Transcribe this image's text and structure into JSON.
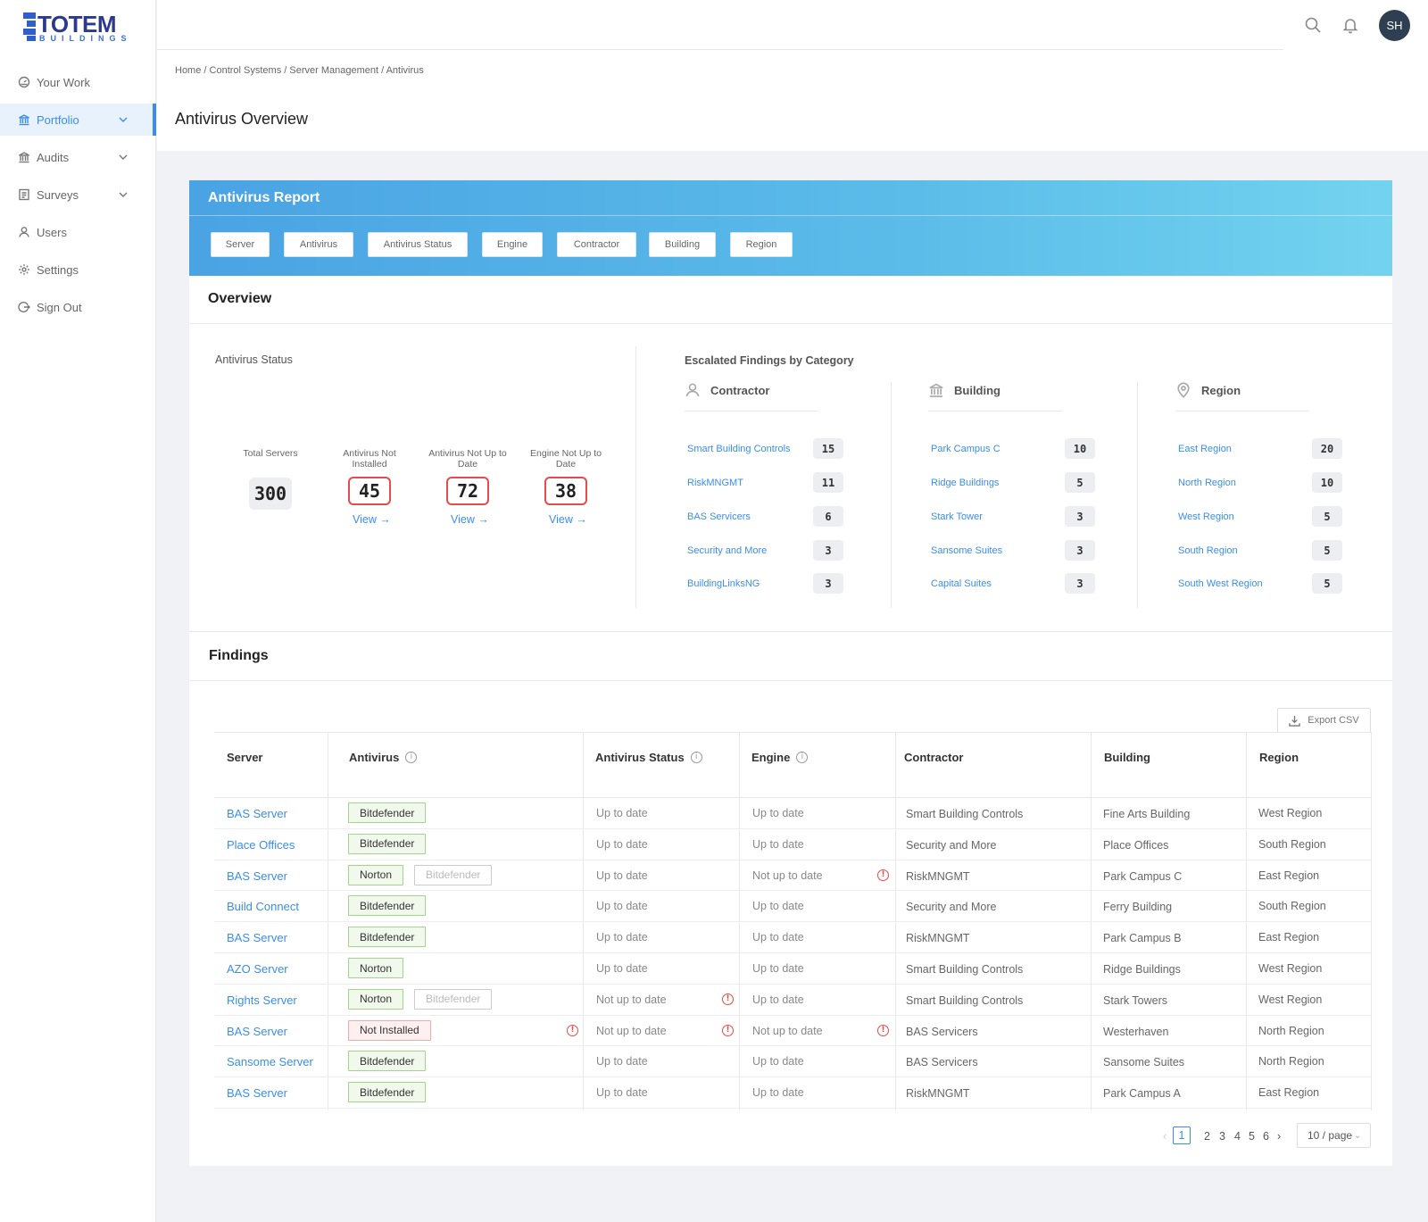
{
  "brand": {
    "name": "TOTEM",
    "sub": "BUILDINGS"
  },
  "sidebar": {
    "items": [
      {
        "label": "Your Work",
        "icon": "dashboard-icon"
      },
      {
        "label": "Portfolio",
        "icon": "bank-icon",
        "active": true
      },
      {
        "label": "Audits",
        "icon": "bank-icon"
      },
      {
        "label": "Surveys",
        "icon": "survey-icon"
      },
      {
        "label": "Users",
        "icon": "user-icon"
      },
      {
        "label": "Settings",
        "icon": "gear-icon"
      },
      {
        "label": "Sign Out",
        "icon": "sign-out-icon"
      }
    ]
  },
  "header": {
    "avatar": "SH"
  },
  "breadcrumb": "Home / Control Systems / Server Management / Antivirus",
  "page_title": "Antivirus Overview",
  "report": {
    "title": "Antivirus Report",
    "filters": [
      "Server",
      "Antivirus",
      "Antivirus Status",
      "Engine",
      "Contractor",
      "Building",
      "Region"
    ]
  },
  "overview": {
    "title": "Overview",
    "status_title": "Antivirus Status",
    "stats": [
      {
        "label": "Total Servers",
        "value": "300"
      },
      {
        "label": "Antivirus Not Installed",
        "value": "45",
        "link": "View"
      },
      {
        "label": "Antivirus Not Up to Date",
        "value": "72",
        "link": "View"
      },
      {
        "label": "Engine Not Up to Date",
        "value": "38",
        "link": "View"
      }
    ],
    "escalated_title": "Escalated Findings by Category",
    "categories": [
      {
        "name": "Contractor",
        "icon": "user-icon",
        "items": [
          {
            "label": "Smart Building Controls",
            "count": "15"
          },
          {
            "label": "RiskMNGMT",
            "count": "11"
          },
          {
            "label": "BAS Servicers",
            "count": "6"
          },
          {
            "label": "Security and More",
            "count": "3"
          },
          {
            "label": "BuildingLinksNG",
            "count": "3"
          }
        ]
      },
      {
        "name": "Building",
        "icon": "bank-icon",
        "items": [
          {
            "label": "Park Campus C",
            "count": "10"
          },
          {
            "label": "Ridge Buildings",
            "count": "5"
          },
          {
            "label": "Stark Tower",
            "count": "3"
          },
          {
            "label": "Sansome Suites",
            "count": "3"
          },
          {
            "label": "Capital Suites",
            "count": "3"
          }
        ]
      },
      {
        "name": "Region",
        "icon": "location-icon",
        "items": [
          {
            "label": "East Region",
            "count": "20"
          },
          {
            "label": "North Region",
            "count": "10"
          },
          {
            "label": "West Region",
            "count": "5"
          },
          {
            "label": "South Region",
            "count": "5"
          },
          {
            "label": "South West Region",
            "count": "5"
          }
        ]
      }
    ]
  },
  "findings": {
    "title": "Findings",
    "export_label": "Export CSV",
    "columns": [
      "Server",
      "Antivirus",
      "Antivirus Status",
      "Engine",
      "Contractor",
      "Building",
      "Region"
    ],
    "rows": [
      {
        "server": "BAS Server",
        "av": "Bitdefender",
        "av2": "",
        "av_warn": false,
        "status": "Up to date",
        "status_warn": false,
        "engine": "Up to date",
        "engine_warn": false,
        "contractor": "Smart Building Controls",
        "building": "Fine Arts Building",
        "region": "West Region"
      },
      {
        "server": "Place Offices",
        "av": "Bitdefender",
        "av2": "",
        "av_warn": false,
        "status": "Up to date",
        "status_warn": false,
        "engine": "Up to date",
        "engine_warn": false,
        "contractor": "Security and More",
        "building": "Place Offices",
        "region": "South Region"
      },
      {
        "server": "BAS Server",
        "av": "Norton",
        "av2": "Bitdefender",
        "av_warn": false,
        "status": "Up to date",
        "status_warn": false,
        "engine": "Not up to date",
        "engine_warn": true,
        "contractor": "RiskMNGMT",
        "building": "Park Campus C",
        "region": "East Region"
      },
      {
        "server": "Build Connect",
        "av": "Bitdefender",
        "av2": "",
        "av_warn": false,
        "status": "Up to date",
        "status_warn": false,
        "engine": "Up to date",
        "engine_warn": false,
        "contractor": "Security and More",
        "building": "Ferry Building",
        "region": "South Region"
      },
      {
        "server": "BAS Server",
        "av": "Bitdefender",
        "av2": "",
        "av_warn": false,
        "status": "Up to date",
        "status_warn": false,
        "engine": "Up to date",
        "engine_warn": false,
        "contractor": "RiskMNGMT",
        "building": "Park Campus B",
        "region": "East Region"
      },
      {
        "server": "AZO Server",
        "av": "Norton",
        "av2": "",
        "av_warn": false,
        "status": "Up to date",
        "status_warn": false,
        "engine": "Up to date",
        "engine_warn": false,
        "contractor": "Smart Building Controls",
        "building": "Ridge Buildings",
        "region": "West Region"
      },
      {
        "server": "Rights Server",
        "av": "Norton",
        "av2": "Bitdefender",
        "av_warn": false,
        "status": "Not up to date",
        "status_warn": true,
        "engine": "Up to date",
        "engine_warn": false,
        "contractor": "Smart Building Controls",
        "building": "Stark Towers",
        "region": "West Region"
      },
      {
        "server": "BAS Server",
        "av": "Not Installed",
        "av2": "",
        "av_warn": true,
        "status": "Not up to date",
        "status_warn": true,
        "engine": "Not up to date",
        "engine_warn": true,
        "contractor": "BAS Servicers",
        "building": "Westerhaven",
        "region": "North Region"
      },
      {
        "server": "Sansome Server",
        "av": "Bitdefender",
        "av2": "",
        "av_warn": false,
        "status": "Up to date",
        "status_warn": false,
        "engine": "Up to date",
        "engine_warn": false,
        "contractor": "BAS Servicers",
        "building": "Sansome Suites",
        "region": "North Region"
      },
      {
        "server": "BAS Server",
        "av": "Bitdefender",
        "av2": "",
        "av_warn": false,
        "status": "Up to date",
        "status_warn": false,
        "engine": "Up to date",
        "engine_warn": false,
        "contractor": "RiskMNGMT",
        "building": "Park Campus A",
        "region": "East Region"
      }
    ],
    "pagination": {
      "pages": [
        "1",
        "2",
        "3",
        "4",
        "5",
        "6"
      ],
      "current": "1",
      "page_size": "10 / page"
    }
  },
  "colors": {
    "accent": "#3b8ee8",
    "warning": "#e54b4b",
    "success_bg": "#f0f9eb"
  }
}
